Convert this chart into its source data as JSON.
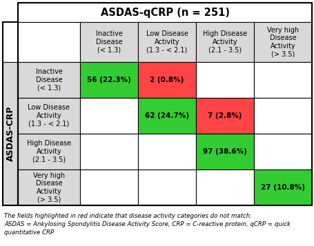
{
  "title": "ASDAS-qCRP (n = 251)",
  "col_headers": [
    "Inactive\nDisease\n(< 1.3)",
    "Low Disease\nActivity\n(1.3 - < 2.1)",
    "High Disease\nActivity\n(2.1 - 3.5)",
    "Very high\nDisease\nActivity\n(> 3.5)"
  ],
  "row_headers": [
    "Inactive\nDisease\n(< 1.3)",
    "Low Disease\nActivity\n(1.3 - < 2.1)",
    "High Disease\nActivity\n(2.1 - 3.5)",
    "Very high\nDisease\nActivity\n(> 3.5)"
  ],
  "y_label": "ASDAS-CRP",
  "cell_values": [
    [
      "56 (22.3%)",
      "2 (0.8%)",
      "",
      ""
    ],
    [
      "",
      "62 (24.7%)",
      "7 (2.8%)",
      ""
    ],
    [
      "",
      "",
      "97 (38.6%)",
      ""
    ],
    [
      "",
      "",
      "",
      "27 (10.8%)"
    ]
  ],
  "cell_colors": [
    [
      "#33cc33",
      "#ff4444",
      "#ffffff",
      "#ffffff"
    ],
    [
      "#ffffff",
      "#33cc33",
      "#ff4444",
      "#ffffff"
    ],
    [
      "#ffffff",
      "#ffffff",
      "#33cc33",
      "#ffffff"
    ],
    [
      "#ffffff",
      "#ffffff",
      "#ffffff",
      "#33cc33"
    ]
  ],
  "header_bg": "#d9d9d9",
  "footnote1": "The fields highlighted in red indicate that disease activity categories do not match.",
  "footnote2": "ASDAS = Ankylosing Spondylitis Disease Activity Score, CRP = C-reactive protein, qCRP = quick",
  "footnote3": "quantitative CRP",
  "border_color": "#000000",
  "title_fontsize": 10.5,
  "header_fontsize": 7,
  "cell_fontsize": 7.5,
  "footnote_fontsize": 6.2,
  "ylabel_fontsize": 9
}
